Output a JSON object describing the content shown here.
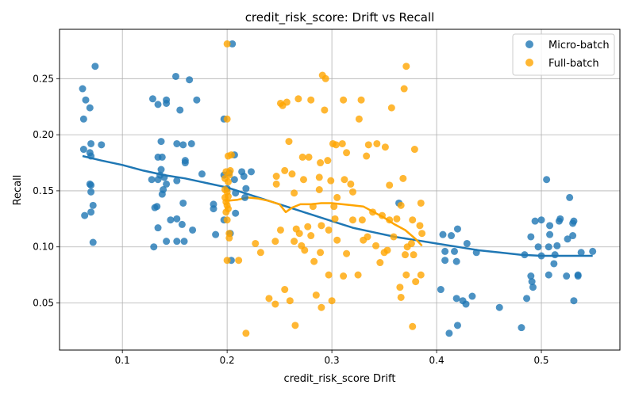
{
  "chart_data": {
    "type": "scatter",
    "title": "credit_risk_score: Drift vs Recall",
    "xlabel": "credit_risk_score Drift",
    "ylabel": "Recall",
    "xlim": [
      0.04,
      0.575
    ],
    "ylim": [
      0.008,
      0.294
    ],
    "x_ticks": [
      0.1,
      0.2,
      0.3,
      0.4,
      0.5
    ],
    "x_tick_labels": [
      "0.1",
      "0.2",
      "0.3",
      "0.4",
      "0.5"
    ],
    "y_ticks": [
      0.05,
      0.1,
      0.15,
      0.2,
      0.25
    ],
    "y_tick_labels": [
      "0.05",
      "0.10",
      "0.15",
      "0.20",
      "0.25"
    ],
    "grid": true,
    "legend_position": "top-right",
    "series": [
      {
        "name": "Micro-batch",
        "color": "#1f77b4",
        "points": [
          [
            0.074,
            0.261
          ],
          [
            0.062,
            0.241
          ],
          [
            0.065,
            0.231
          ],
          [
            0.069,
            0.224
          ],
          [
            0.063,
            0.214
          ],
          [
            0.07,
            0.192
          ],
          [
            0.063,
            0.187
          ],
          [
            0.069,
            0.184
          ],
          [
            0.07,
            0.181
          ],
          [
            0.08,
            0.191
          ],
          [
            0.069,
            0.156
          ],
          [
            0.07,
            0.155
          ],
          [
            0.07,
            0.149
          ],
          [
            0.072,
            0.137
          ],
          [
            0.07,
            0.131
          ],
          [
            0.064,
            0.128
          ],
          [
            0.072,
            0.104
          ],
          [
            0.151,
            0.252
          ],
          [
            0.164,
            0.249
          ],
          [
            0.129,
            0.232
          ],
          [
            0.142,
            0.231
          ],
          [
            0.142,
            0.228
          ],
          [
            0.134,
            0.227
          ],
          [
            0.155,
            0.222
          ],
          [
            0.171,
            0.231
          ],
          [
            0.137,
            0.194
          ],
          [
            0.152,
            0.192
          ],
          [
            0.158,
            0.191
          ],
          [
            0.166,
            0.192
          ],
          [
            0.134,
            0.18
          ],
          [
            0.138,
            0.18
          ],
          [
            0.16,
            0.177
          ],
          [
            0.16,
            0.175
          ],
          [
            0.128,
            0.16
          ],
          [
            0.134,
            0.16
          ],
          [
            0.137,
            0.169
          ],
          [
            0.136,
            0.164
          ],
          [
            0.14,
            0.162
          ],
          [
            0.142,
            0.156
          ],
          [
            0.139,
            0.151
          ],
          [
            0.138,
            0.147
          ],
          [
            0.152,
            0.159
          ],
          [
            0.176,
            0.165
          ],
          [
            0.131,
            0.135
          ],
          [
            0.133,
            0.136
          ],
          [
            0.158,
            0.139
          ],
          [
            0.134,
            0.117
          ],
          [
            0.146,
            0.124
          ],
          [
            0.152,
            0.125
          ],
          [
            0.157,
            0.12
          ],
          [
            0.167,
            0.115
          ],
          [
            0.142,
            0.105
          ],
          [
            0.152,
            0.105
          ],
          [
            0.159,
            0.105
          ],
          [
            0.13,
            0.1
          ],
          [
            0.197,
            0.214
          ],
          [
            0.205,
            0.281
          ],
          [
            0.207,
            0.182
          ],
          [
            0.202,
            0.166
          ],
          [
            0.197,
            0.164
          ],
          [
            0.207,
            0.16
          ],
          [
            0.214,
            0.167
          ],
          [
            0.223,
            0.167
          ],
          [
            0.216,
            0.163
          ],
          [
            0.218,
            0.152
          ],
          [
            0.2,
            0.152
          ],
          [
            0.208,
            0.148
          ],
          [
            0.217,
            0.144
          ],
          [
            0.187,
            0.138
          ],
          [
            0.187,
            0.134
          ],
          [
            0.197,
            0.124
          ],
          [
            0.208,
            0.13
          ],
          [
            0.189,
            0.111
          ],
          [
            0.203,
            0.112
          ],
          [
            0.204,
            0.088
          ],
          [
            0.364,
            0.139
          ],
          [
            0.406,
            0.111
          ],
          [
            0.414,
            0.11
          ],
          [
            0.42,
            0.116
          ],
          [
            0.408,
            0.096
          ],
          [
            0.417,
            0.096
          ],
          [
            0.408,
            0.088
          ],
          [
            0.419,
            0.087
          ],
          [
            0.429,
            0.103
          ],
          [
            0.438,
            0.095
          ],
          [
            0.404,
            0.062
          ],
          [
            0.419,
            0.054
          ],
          [
            0.425,
            0.052
          ],
          [
            0.428,
            0.049
          ],
          [
            0.434,
            0.056
          ],
          [
            0.46,
            0.046
          ],
          [
            0.42,
            0.03
          ],
          [
            0.412,
            0.023
          ],
          [
            0.505,
            0.16
          ],
          [
            0.527,
            0.144
          ],
          [
            0.494,
            0.123
          ],
          [
            0.5,
            0.124
          ],
          [
            0.517,
            0.123
          ],
          [
            0.518,
            0.125
          ],
          [
            0.531,
            0.123
          ],
          [
            0.508,
            0.119
          ],
          [
            0.53,
            0.121
          ],
          [
            0.49,
            0.109
          ],
          [
            0.508,
            0.111
          ],
          [
            0.53,
            0.11
          ],
          [
            0.497,
            0.1
          ],
          [
            0.507,
            0.1
          ],
          [
            0.515,
            0.101
          ],
          [
            0.525,
            0.107
          ],
          [
            0.484,
            0.093
          ],
          [
            0.5,
            0.092
          ],
          [
            0.513,
            0.093
          ],
          [
            0.538,
            0.095
          ],
          [
            0.549,
            0.096
          ],
          [
            0.512,
            0.085
          ],
          [
            0.49,
            0.074
          ],
          [
            0.507,
            0.075
          ],
          [
            0.524,
            0.074
          ],
          [
            0.535,
            0.075
          ],
          [
            0.535,
            0.074
          ],
          [
            0.491,
            0.069
          ],
          [
            0.492,
            0.064
          ],
          [
            0.486,
            0.054
          ],
          [
            0.531,
            0.052
          ],
          [
            0.481,
            0.028
          ]
        ],
        "trend": [
          [
            0.062,
            0.181
          ],
          [
            0.08,
            0.177
          ],
          [
            0.1,
            0.173
          ],
          [
            0.12,
            0.168
          ],
          [
            0.14,
            0.164
          ],
          [
            0.16,
            0.161
          ],
          [
            0.18,
            0.157
          ],
          [
            0.2,
            0.153
          ],
          [
            0.22,
            0.147
          ],
          [
            0.24,
            0.141
          ],
          [
            0.26,
            0.135
          ],
          [
            0.28,
            0.129
          ],
          [
            0.3,
            0.123
          ],
          [
            0.32,
            0.117
          ],
          [
            0.34,
            0.113
          ],
          [
            0.36,
            0.109
          ],
          [
            0.38,
            0.106
          ],
          [
            0.4,
            0.103
          ],
          [
            0.42,
            0.1
          ],
          [
            0.44,
            0.097
          ],
          [
            0.46,
            0.095
          ],
          [
            0.48,
            0.093
          ],
          [
            0.5,
            0.092
          ],
          [
            0.52,
            0.092
          ],
          [
            0.549,
            0.092
          ]
        ]
      },
      {
        "name": "Full-batch",
        "color": "#ffa500",
        "points": [
          [
            0.2,
            0.281
          ],
          [
            0.371,
            0.261
          ],
          [
            0.291,
            0.253
          ],
          [
            0.294,
            0.25
          ],
          [
            0.369,
            0.241
          ],
          [
            0.251,
            0.228
          ],
          [
            0.253,
            0.226
          ],
          [
            0.257,
            0.229
          ],
          [
            0.268,
            0.232
          ],
          [
            0.28,
            0.231
          ],
          [
            0.311,
            0.231
          ],
          [
            0.328,
            0.231
          ],
          [
            0.293,
            0.222
          ],
          [
            0.357,
            0.224
          ],
          [
            0.2,
            0.214
          ],
          [
            0.326,
            0.214
          ],
          [
            0.259,
            0.194
          ],
          [
            0.301,
            0.192
          ],
          [
            0.304,
            0.191
          ],
          [
            0.31,
            0.192
          ],
          [
            0.335,
            0.191
          ],
          [
            0.343,
            0.192
          ],
          [
            0.351,
            0.189
          ],
          [
            0.379,
            0.187
          ],
          [
            0.314,
            0.184
          ],
          [
            0.272,
            0.18
          ],
          [
            0.278,
            0.18
          ],
          [
            0.289,
            0.175
          ],
          [
            0.296,
            0.177
          ],
          [
            0.333,
            0.181
          ],
          [
            0.201,
            0.181
          ],
          [
            0.204,
            0.182
          ],
          [
            0.199,
            0.167
          ],
          [
            0.203,
            0.168
          ],
          [
            0.202,
            0.164
          ],
          [
            0.198,
            0.161
          ],
          [
            0.201,
            0.158
          ],
          [
            0.198,
            0.151
          ],
          [
            0.2,
            0.149
          ],
          [
            0.198,
            0.144
          ],
          [
            0.201,
            0.145
          ],
          [
            0.199,
            0.14
          ],
          [
            0.2,
            0.137
          ],
          [
            0.201,
            0.134
          ],
          [
            0.199,
            0.131
          ],
          [
            0.2,
            0.124
          ],
          [
            0.202,
            0.112
          ],
          [
            0.202,
            0.108
          ],
          [
            0.2,
            0.088
          ],
          [
            0.211,
            0.088
          ],
          [
            0.255,
            0.168
          ],
          [
            0.247,
            0.163
          ],
          [
            0.262,
            0.165
          ],
          [
            0.273,
            0.16
          ],
          [
            0.288,
            0.162
          ],
          [
            0.299,
            0.159
          ],
          [
            0.312,
            0.16
          ],
          [
            0.318,
            0.156
          ],
          [
            0.32,
            0.149
          ],
          [
            0.305,
            0.144
          ],
          [
            0.288,
            0.151
          ],
          [
            0.247,
            0.156
          ],
          [
            0.264,
            0.148
          ],
          [
            0.282,
            0.136
          ],
          [
            0.302,
            0.136
          ],
          [
            0.355,
            0.155
          ],
          [
            0.366,
            0.137
          ],
          [
            0.368,
            0.161
          ],
          [
            0.385,
            0.139
          ],
          [
            0.339,
            0.131
          ],
          [
            0.348,
            0.128
          ],
          [
            0.355,
            0.124
          ],
          [
            0.362,
            0.125
          ],
          [
            0.377,
            0.124
          ],
          [
            0.384,
            0.119
          ],
          [
            0.303,
            0.125
          ],
          [
            0.32,
            0.124
          ],
          [
            0.329,
            0.124
          ],
          [
            0.266,
            0.116
          ],
          [
            0.277,
            0.118
          ],
          [
            0.29,
            0.119
          ],
          [
            0.297,
            0.115
          ],
          [
            0.251,
            0.115
          ],
          [
            0.269,
            0.112
          ],
          [
            0.28,
            0.11
          ],
          [
            0.227,
            0.103
          ],
          [
            0.246,
            0.105
          ],
          [
            0.264,
            0.105
          ],
          [
            0.274,
            0.097
          ],
          [
            0.289,
            0.095
          ],
          [
            0.305,
            0.106
          ],
          [
            0.33,
            0.106
          ],
          [
            0.334,
            0.109
          ],
          [
            0.342,
            0.101
          ],
          [
            0.353,
            0.097
          ],
          [
            0.359,
            0.109
          ],
          [
            0.372,
            0.1
          ],
          [
            0.376,
            0.103
          ],
          [
            0.386,
            0.112
          ],
          [
            0.232,
            0.095
          ],
          [
            0.314,
            0.094
          ],
          [
            0.35,
            0.095
          ],
          [
            0.37,
            0.093
          ],
          [
            0.378,
            0.093
          ],
          [
            0.271,
            0.101
          ],
          [
            0.283,
            0.087
          ],
          [
            0.346,
            0.086
          ],
          [
            0.297,
            0.075
          ],
          [
            0.311,
            0.074
          ],
          [
            0.325,
            0.075
          ],
          [
            0.371,
            0.075
          ],
          [
            0.385,
            0.075
          ],
          [
            0.38,
            0.069
          ],
          [
            0.255,
            0.062
          ],
          [
            0.365,
            0.064
          ],
          [
            0.24,
            0.054
          ],
          [
            0.26,
            0.052
          ],
          [
            0.285,
            0.057
          ],
          [
            0.3,
            0.052
          ],
          [
            0.366,
            0.055
          ],
          [
            0.246,
            0.049
          ],
          [
            0.29,
            0.046
          ],
          [
            0.265,
            0.03
          ],
          [
            0.377,
            0.029
          ],
          [
            0.218,
            0.023
          ]
        ],
        "trend": [
          [
            0.198,
            0.141
          ],
          [
            0.21,
            0.142
          ],
          [
            0.22,
            0.144
          ],
          [
            0.23,
            0.143
          ],
          [
            0.24,
            0.141
          ],
          [
            0.25,
            0.138
          ],
          [
            0.256,
            0.131
          ],
          [
            0.262,
            0.135
          ],
          [
            0.27,
            0.138
          ],
          [
            0.28,
            0.138
          ],
          [
            0.29,
            0.139
          ],
          [
            0.3,
            0.139
          ],
          [
            0.31,
            0.138
          ],
          [
            0.32,
            0.137
          ],
          [
            0.33,
            0.136
          ],
          [
            0.34,
            0.131
          ],
          [
            0.35,
            0.126
          ],
          [
            0.36,
            0.12
          ],
          [
            0.37,
            0.115
          ],
          [
            0.38,
            0.107
          ],
          [
            0.386,
            0.101
          ]
        ]
      }
    ]
  }
}
